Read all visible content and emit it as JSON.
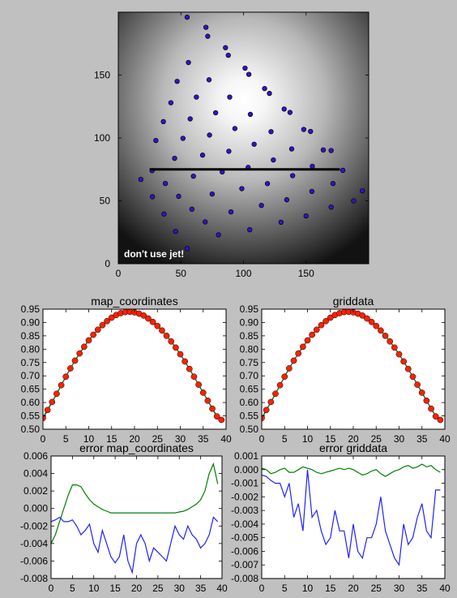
{
  "chart_data": [
    {
      "type": "heatmap",
      "title": "",
      "xlabel": "",
      "ylabel": "",
      "xlim": [
        0,
        200
      ],
      "ylim": [
        0,
        200
      ],
      "x_ticks": [
        "0",
        "50",
        "100",
        "150"
      ],
      "y_ticks": [
        "0",
        "50",
        "100",
        "150"
      ],
      "annotation": "don't use jet!",
      "background": "grayscale radial gradient, brightest near (100, 130)",
      "marker_color": "#3a10c8",
      "line_color": "#000000",
      "line": {
        "x": [
          25,
          177
        ],
        "y": [
          75,
          75
        ]
      },
      "scatter_rows": [
        {
          "y_start": 67,
          "y_end": 12,
          "x_start": 18,
          "x_end": 55,
          "n": 5
        },
        {
          "y_start": 74,
          "y_end": 23,
          "x_start": 27,
          "x_end": 80,
          "n": 6
        },
        {
          "y_start": 98,
          "y_end": 27,
          "x_start": 30,
          "x_end": 105,
          "n": 6
        },
        {
          "y_start": 113,
          "y_end": 33,
          "x_start": 36,
          "x_end": 130,
          "n": 7
        },
        {
          "y_start": 128,
          "y_end": 38,
          "x_start": 42,
          "x_end": 150,
          "n": 8
        },
        {
          "y_start": 145,
          "y_end": 45,
          "x_start": 47,
          "x_end": 170,
          "n": 9
        },
        {
          "y_start": 160,
          "y_end": 50,
          "x_start": 56,
          "x_end": 188,
          "n": 9
        },
        {
          "y_start": 188,
          "y_end": 58,
          "x_start": 70,
          "x_end": 195,
          "n": 9
        },
        {
          "y_start": 196,
          "y_end": 90,
          "x_start": 55,
          "x_end": 170,
          "n": 8
        }
      ]
    },
    {
      "type": "line",
      "title": "map_coordinates",
      "xlim": [
        0,
        40
      ],
      "ylim": [
        0.5,
        0.95
      ],
      "x_ticks": [
        "0",
        "5",
        "10",
        "15",
        "20",
        "25",
        "30",
        "35",
        "40"
      ],
      "y_ticks": [
        "0.50",
        "0.55",
        "0.60",
        "0.65",
        "0.70",
        "0.75",
        "0.80",
        "0.85",
        "0.90",
        "0.95"
      ],
      "x": [
        0,
        1,
        2,
        3,
        4,
        5,
        6,
        7,
        8,
        9,
        10,
        11,
        12,
        13,
        14,
        15,
        16,
        17,
        18,
        19,
        20,
        21,
        22,
        23,
        24,
        25,
        26,
        27,
        28,
        29,
        30,
        31,
        32,
        33,
        34,
        35,
        36,
        37,
        38,
        39
      ],
      "series": [
        {
          "name": "",
          "color": "#2020ff",
          "marker": "line",
          "values": [
            0.54,
            0.57,
            0.601,
            0.633,
            0.665,
            0.697,
            0.728,
            0.757,
            0.784,
            0.809,
            0.833,
            0.854,
            0.873,
            0.89,
            0.905,
            0.918,
            0.928,
            0.935,
            0.938,
            0.938,
            0.936,
            0.932,
            0.925,
            0.915,
            0.902,
            0.887,
            0.87,
            0.85,
            0.829,
            0.806,
            0.781,
            0.754,
            0.726,
            0.697,
            0.667,
            0.637,
            0.607,
            0.578,
            0.549,
            0.535
          ]
        },
        {
          "name": "",
          "color": "#008000",
          "marker": "line",
          "values": [
            0.544,
            0.573,
            0.603,
            0.633,
            0.665,
            0.697,
            0.728,
            0.757,
            0.784,
            0.809,
            0.833,
            0.854,
            0.873,
            0.89,
            0.905,
            0.918,
            0.928,
            0.935,
            0.939,
            0.94,
            0.938,
            0.933,
            0.926,
            0.915,
            0.902,
            0.887,
            0.87,
            0.85,
            0.829,
            0.806,
            0.781,
            0.754,
            0.726,
            0.697,
            0.667,
            0.637,
            0.607,
            0.576,
            0.547,
            0.535
          ]
        },
        {
          "name": "",
          "color": "#ff2000",
          "marker": "circle",
          "values": [
            0.542,
            0.572,
            0.602,
            0.633,
            0.665,
            0.697,
            0.728,
            0.757,
            0.784,
            0.809,
            0.833,
            0.854,
            0.873,
            0.89,
            0.905,
            0.918,
            0.928,
            0.935,
            0.939,
            0.94,
            0.938,
            0.933,
            0.926,
            0.915,
            0.902,
            0.887,
            0.87,
            0.85,
            0.829,
            0.806,
            0.781,
            0.754,
            0.726,
            0.697,
            0.667,
            0.637,
            0.607,
            0.577,
            0.548,
            0.535
          ]
        }
      ]
    },
    {
      "type": "line",
      "title": "griddata",
      "xlim": [
        0,
        40
      ],
      "ylim": [
        0.5,
        0.95
      ],
      "x_ticks": [
        "0",
        "5",
        "10",
        "15",
        "20",
        "25",
        "30",
        "35",
        "40"
      ],
      "y_ticks": [
        "0.50",
        "0.55",
        "0.60",
        "0.65",
        "0.70",
        "0.75",
        "0.80",
        "0.85",
        "0.90",
        "0.95"
      ],
      "x": [
        0,
        1,
        2,
        3,
        4,
        5,
        6,
        7,
        8,
        9,
        10,
        11,
        12,
        13,
        14,
        15,
        16,
        17,
        18,
        19,
        20,
        21,
        22,
        23,
        24,
        25,
        26,
        27,
        28,
        29,
        30,
        31,
        32,
        33,
        34,
        35,
        36,
        37,
        38,
        39
      ],
      "series": [
        {
          "name": "",
          "color": "#2020ff",
          "marker": "line",
          "values": [
            0.54,
            0.57,
            0.601,
            0.633,
            0.665,
            0.697,
            0.728,
            0.757,
            0.784,
            0.809,
            0.833,
            0.854,
            0.873,
            0.89,
            0.905,
            0.918,
            0.928,
            0.935,
            0.938,
            0.938,
            0.936,
            0.932,
            0.925,
            0.915,
            0.902,
            0.887,
            0.87,
            0.85,
            0.829,
            0.806,
            0.781,
            0.754,
            0.726,
            0.697,
            0.667,
            0.637,
            0.607,
            0.578,
            0.549,
            0.535
          ]
        },
        {
          "name": "",
          "color": "#008000",
          "marker": "line",
          "values": [
            0.542,
            0.572,
            0.602,
            0.633,
            0.665,
            0.697,
            0.728,
            0.757,
            0.784,
            0.809,
            0.833,
            0.854,
            0.873,
            0.89,
            0.905,
            0.918,
            0.928,
            0.935,
            0.939,
            0.94,
            0.938,
            0.933,
            0.926,
            0.915,
            0.902,
            0.887,
            0.87,
            0.85,
            0.829,
            0.806,
            0.781,
            0.754,
            0.726,
            0.697,
            0.667,
            0.637,
            0.607,
            0.577,
            0.548,
            0.535
          ]
        },
        {
          "name": "",
          "color": "#ff2000",
          "marker": "circle",
          "values": [
            0.542,
            0.572,
            0.602,
            0.633,
            0.665,
            0.697,
            0.728,
            0.757,
            0.784,
            0.809,
            0.833,
            0.854,
            0.873,
            0.89,
            0.905,
            0.918,
            0.928,
            0.935,
            0.939,
            0.94,
            0.938,
            0.933,
            0.926,
            0.915,
            0.902,
            0.887,
            0.87,
            0.85,
            0.829,
            0.806,
            0.781,
            0.754,
            0.726,
            0.697,
            0.667,
            0.637,
            0.607,
            0.577,
            0.548,
            0.535
          ]
        }
      ]
    },
    {
      "type": "line",
      "title": "error map_coordinates",
      "xlim": [
        0,
        40
      ],
      "ylim": [
        -0.008,
        0.006
      ],
      "x_ticks": [
        "0",
        "5",
        "10",
        "15",
        "20",
        "25",
        "30",
        "35",
        "40"
      ],
      "y_ticks": [
        "-0.008",
        "-0.006",
        "-0.004",
        "-0.002",
        "0.000",
        "0.002",
        "0.004",
        "0.006"
      ],
      "x": [
        0,
        1,
        2,
        3,
        4,
        5,
        6,
        7,
        8,
        9,
        10,
        11,
        12,
        13,
        14,
        15,
        16,
        17,
        18,
        19,
        20,
        21,
        22,
        23,
        24,
        25,
        26,
        27,
        28,
        29,
        30,
        31,
        32,
        33,
        34,
        35,
        36,
        37,
        38,
        39
      ],
      "series": [
        {
          "name": "",
          "color": "#008000",
          "values": [
            -0.004,
            -0.003,
            -0.0015,
            0.0,
            0.0015,
            0.0027,
            0.0027,
            0.0025,
            0.0017,
            0.001,
            0.0005,
            0.0002,
            -0.0001,
            -0.0003,
            -0.0005,
            -0.0005,
            -0.0005,
            -0.0005,
            -0.0005,
            -0.0005,
            -0.0005,
            -0.0005,
            -0.0005,
            -0.0005,
            -0.0005,
            -0.0005,
            -0.0005,
            -0.0005,
            -0.0005,
            -0.0005,
            -0.0004,
            -0.0003,
            -0.0001,
            0.0002,
            0.0005,
            0.001,
            0.002,
            0.004,
            0.0051,
            0.0028
          ]
        },
        {
          "name": "",
          "color": "#2020ff",
          "values": [
            -0.0015,
            -0.0013,
            -0.001,
            -0.0015,
            -0.0015,
            -0.0013,
            -0.002,
            -0.003,
            -0.0025,
            -0.0018,
            -0.004,
            -0.005,
            -0.0025,
            -0.004,
            -0.0055,
            -0.0062,
            -0.0055,
            -0.003,
            -0.006,
            -0.0073,
            -0.004,
            -0.003,
            -0.004,
            -0.006,
            -0.0045,
            -0.005,
            -0.0055,
            -0.006,
            -0.004,
            -0.002,
            -0.003,
            -0.0035,
            -0.002,
            -0.003,
            -0.0035,
            -0.0045,
            -0.004,
            -0.003,
            -0.001,
            -0.0015
          ]
        }
      ]
    },
    {
      "type": "line",
      "title": "error griddata",
      "xlim": [
        0,
        40
      ],
      "ylim": [
        -0.008,
        0.001
      ],
      "x_ticks": [
        "0",
        "5",
        "10",
        "15",
        "20",
        "25",
        "30",
        "35",
        "40"
      ],
      "y_ticks": [
        "-0.008",
        "-0.007",
        "-0.006",
        "-0.005",
        "-0.004",
        "-0.003",
        "-0.002",
        "-0.001",
        "0.000",
        "0.001"
      ],
      "x": [
        0,
        1,
        2,
        3,
        4,
        5,
        6,
        7,
        8,
        9,
        10,
        11,
        12,
        13,
        14,
        15,
        16,
        17,
        18,
        19,
        20,
        21,
        22,
        23,
        24,
        25,
        26,
        27,
        28,
        29,
        30,
        31,
        32,
        33,
        34,
        35,
        36,
        37,
        38,
        39
      ],
      "series": [
        {
          "name": "",
          "color": "#008000",
          "values": [
            0.0001,
            0.0,
            -0.0003,
            -0.0002,
            0.0,
            0.0001,
            -0.0002,
            -0.0002,
            0.0,
            0.0002,
            0.0001,
            0.0,
            -0.0002,
            -0.0003,
            -0.0002,
            -0.0001,
            0.0,
            0.0001,
            0.0,
            0.0001,
            0.0,
            -0.0002,
            -0.0004,
            -0.0003,
            -0.0001,
            0.0,
            -0.0003,
            -0.0005,
            -0.0003,
            -0.0001,
            0.0,
            0.0002,
            0.0003,
            0.0001,
            0.0002,
            0.0004,
            0.0002,
            0.0003,
            0.0,
            -0.0002
          ]
        },
        {
          "name": "",
          "color": "#2020ff",
          "values": [
            -0.0004,
            -0.0005,
            -0.0008,
            -0.001,
            -0.001,
            -0.002,
            -0.001,
            -0.0035,
            -0.0025,
            -0.0045,
            0.0,
            -0.0035,
            -0.003,
            -0.0045,
            -0.0055,
            -0.005,
            -0.003,
            -0.0045,
            -0.0045,
            -0.0065,
            -0.004,
            -0.006,
            -0.0065,
            -0.005,
            -0.005,
            -0.004,
            -0.002,
            -0.0045,
            -0.0055,
            -0.0065,
            -0.007,
            -0.004,
            -0.0055,
            -0.005,
            -0.0035,
            -0.0025,
            -0.0045,
            -0.005,
            -0.0015,
            -0.0015
          ]
        }
      ]
    }
  ]
}
